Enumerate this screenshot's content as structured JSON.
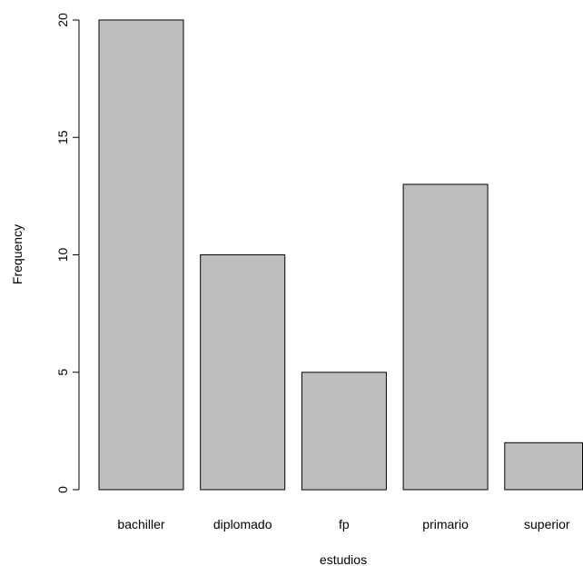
{
  "chart_data": {
    "type": "bar",
    "categories": [
      "bachiller",
      "diplomado",
      "fp",
      "primario",
      "superior"
    ],
    "values": [
      20,
      10,
      5,
      13,
      2
    ],
    "title": "",
    "xlabel": "estudios",
    "ylabel": "Frequency",
    "ylim": [
      0,
      20
    ],
    "yticks": [
      0,
      5,
      10,
      15,
      20
    ],
    "grid": false,
    "legend": "none",
    "bar_color": "#bebebe",
    "border_color": "#000000"
  }
}
